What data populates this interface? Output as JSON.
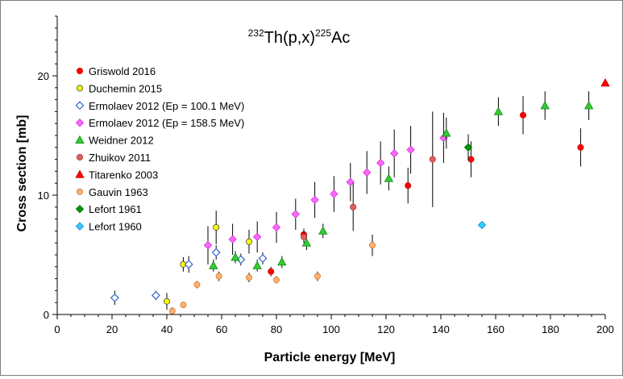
{
  "chart_data": {
    "type": "scatter",
    "title": {
      "prefix_sup": "232",
      "main": "Th(p,x)",
      "mid_sup": "225",
      "suffix": "Ac"
    },
    "xlabel": "Particle energy [MeV]",
    "ylabel": "Cross section [mb]",
    "xlim": [
      0,
      200
    ],
    "ylim": [
      0,
      25
    ],
    "xticks": [
      0,
      20,
      40,
      60,
      80,
      100,
      120,
      140,
      160,
      180,
      200
    ],
    "yticks": [
      0,
      10,
      20
    ],
    "grid": false,
    "legend_position": "top-left",
    "series": [
      {
        "name": "Griswold 2016",
        "marker": "circle",
        "color": "#ff0000",
        "stroke": "#cc0000",
        "points": [
          {
            "x": 78,
            "y": 3.6,
            "err": 0.4
          },
          {
            "x": 90,
            "y": 6.7,
            "err": 0.5
          },
          {
            "x": 128,
            "y": 10.8,
            "err": 1.5
          },
          {
            "x": 151,
            "y": 13.0,
            "err": 1.5
          },
          {
            "x": 170,
            "y": 16.7,
            "err": 1.6
          },
          {
            "x": 191,
            "y": 14.0,
            "err": 1.6
          }
        ]
      },
      {
        "name": "Duchemin 2015",
        "marker": "circle",
        "color": "#ffff00",
        "stroke": "#444444",
        "points": [
          {
            "x": 40,
            "y": 1.1,
            "err": 0.7
          },
          {
            "x": 46,
            "y": 4.2,
            "err": 0.6
          },
          {
            "x": 58,
            "y": 7.3,
            "err": 1.4
          },
          {
            "x": 70,
            "y": 6.1,
            "err": 1.0
          }
        ]
      },
      {
        "name": "Ermolaev 2012 (Ep = 100.1 MeV)",
        "marker": "diamond-open",
        "color": "#ffffff",
        "stroke": "#3366cc",
        "points": [
          {
            "x": 21,
            "y": 1.4,
            "err": 0.6
          },
          {
            "x": 36,
            "y": 1.6,
            "err": 0.4
          },
          {
            "x": 48,
            "y": 4.2,
            "err": 0.7
          },
          {
            "x": 58,
            "y": 5.2,
            "err": 0.6
          },
          {
            "x": 67,
            "y": 4.6,
            "err": 0.5
          },
          {
            "x": 75,
            "y": 4.7,
            "err": 0.5
          }
        ]
      },
      {
        "name": "Ermolaev 2012 (Ep = 158.5 MeV)",
        "marker": "diamond",
        "color": "#ff66ff",
        "stroke": "#cc33cc",
        "points": [
          {
            "x": 55,
            "y": 5.8,
            "err": 1.6
          },
          {
            "x": 64,
            "y": 6.3,
            "err": 1.3
          },
          {
            "x": 73,
            "y": 6.5,
            "err": 1.3
          },
          {
            "x": 80,
            "y": 7.3,
            "err": 1.3
          },
          {
            "x": 87,
            "y": 8.4,
            "err": 1.3
          },
          {
            "x": 94,
            "y": 9.6,
            "err": 1.5
          },
          {
            "x": 101,
            "y": 10.1,
            "err": 1.5
          },
          {
            "x": 107,
            "y": 11.1,
            "err": 1.6
          },
          {
            "x": 113,
            "y": 11.9,
            "err": 1.8
          },
          {
            "x": 118,
            "y": 12.7,
            "err": 1.8
          },
          {
            "x": 123,
            "y": 13.5,
            "err": 2.0
          },
          {
            "x": 129,
            "y": 13.8,
            "err": 2.0
          },
          {
            "x": 141,
            "y": 14.8,
            "err": 2.1
          }
        ]
      },
      {
        "name": "Weidner 2012",
        "marker": "triangle",
        "color": "#33cc33",
        "stroke": "#118811",
        "points": [
          {
            "x": 57,
            "y": 4.1,
            "err": 0.5
          },
          {
            "x": 65,
            "y": 4.8,
            "err": 0.5
          },
          {
            "x": 73,
            "y": 4.1,
            "err": 0.5
          },
          {
            "x": 82,
            "y": 4.4,
            "err": 0.5
          },
          {
            "x": 91,
            "y": 6.0,
            "err": 0.6
          },
          {
            "x": 97,
            "y": 7.0,
            "err": 0.6
          },
          {
            "x": 121,
            "y": 11.4,
            "err": 1.0
          },
          {
            "x": 142,
            "y": 15.2,
            "err": 1.3
          },
          {
            "x": 161,
            "y": 17.0,
            "err": 1.2
          },
          {
            "x": 178,
            "y": 17.5,
            "err": 1.2
          },
          {
            "x": 194,
            "y": 17.5,
            "err": 1.2
          }
        ]
      },
      {
        "name": "Zhuikov 2011",
        "marker": "circle",
        "color": "#e06060",
        "stroke": "#b03030",
        "points": [
          {
            "x": 90,
            "y": 6.5,
            "err": 0.5
          },
          {
            "x": 108,
            "y": 9.0,
            "err": 2.0
          },
          {
            "x": 137,
            "y": 13.0,
            "err": 4.0
          }
        ]
      },
      {
        "name": "Titarenko 2003",
        "marker": "triangle",
        "color": "#ff0000",
        "stroke": "#cc0000",
        "points": [
          {
            "x": 200,
            "y": 19.4,
            "err": 0
          }
        ]
      },
      {
        "name": "Gauvin 1963",
        "marker": "circle",
        "color": "#ffb070",
        "stroke": "#cc7a33",
        "points": [
          {
            "x": 42,
            "y": 0.3,
            "err": 0.3
          },
          {
            "x": 46,
            "y": 0.8,
            "err": 0.2
          },
          {
            "x": 51,
            "y": 2.5,
            "err": 0.3
          },
          {
            "x": 59,
            "y": 3.2,
            "err": 0.4
          },
          {
            "x": 70,
            "y": 3.1,
            "err": 0.4
          },
          {
            "x": 80,
            "y": 2.9,
            "err": 0.3
          },
          {
            "x": 95,
            "y": 3.2,
            "err": 0.4
          },
          {
            "x": 115,
            "y": 5.8,
            "err": 0.9
          }
        ]
      },
      {
        "name": "Lefort 1961",
        "marker": "diamond",
        "color": "#009900",
        "stroke": "#006600",
        "points": [
          {
            "x": 150,
            "y": 14.0,
            "err": 1.1
          }
        ]
      },
      {
        "name": "Lefort 1960",
        "marker": "diamond",
        "color": "#33ccff",
        "stroke": "#1188cc",
        "points": [
          {
            "x": 155,
            "y": 7.5,
            "err": 0
          }
        ]
      }
    ]
  }
}
